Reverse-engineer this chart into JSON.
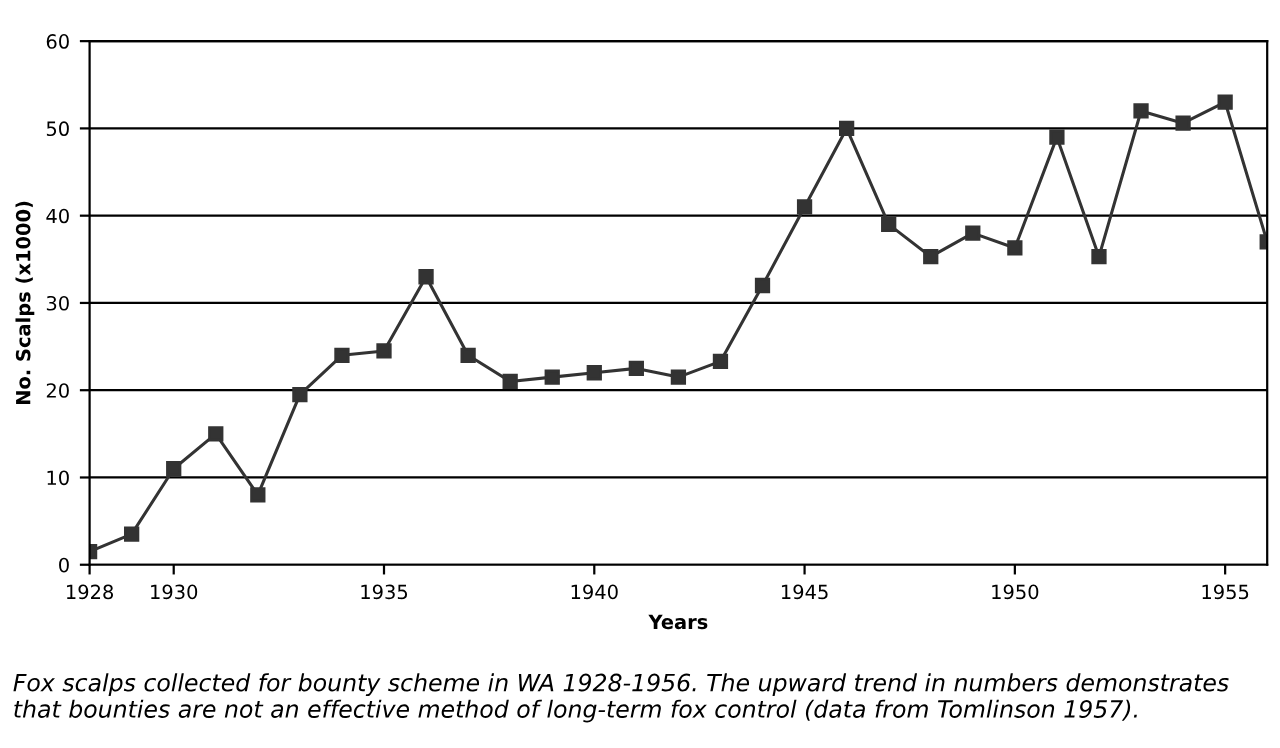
{
  "chart_data": {
    "type": "line",
    "xlabel": "Years",
    "ylabel": "No. Scalps (x1000)",
    "x": [
      1928,
      1929,
      1930,
      1931,
      1932,
      1933,
      1934,
      1935,
      1936,
      1937,
      1938,
      1939,
      1940,
      1941,
      1942,
      1943,
      1944,
      1945,
      1946,
      1947,
      1948,
      1949,
      1950,
      1951,
      1952,
      1953,
      1954,
      1955,
      1956
    ],
    "series": [
      {
        "color": "#333333",
        "values": [
          1.5,
          3.5,
          11,
          15,
          8,
          19.5,
          24,
          24.5,
          33,
          24,
          21,
          21.5,
          22,
          22.5,
          21.5,
          23.3,
          32,
          41,
          50,
          39,
          35.3,
          38,
          36.3,
          49,
          35.3,
          52,
          50.6,
          53,
          37
        ]
      }
    ],
    "xlim": [
      1928,
      1956
    ],
    "xticks": [
      1928,
      1930,
      1935,
      1940,
      1945,
      1950,
      1955
    ],
    "ylim": [
      0,
      60
    ],
    "yticks": [
      0,
      10,
      20,
      30,
      40,
      50,
      60
    ],
    "grid": "y",
    "marker": "square",
    "line_style": "solid",
    "annotations": [
      "Fox scalps collected for bounty scheme in WA 1928-1956. The upward trend in numbers demonstrates that bounties are not an effective method of long-term fox control (data from Tomlinson 1957)."
    ]
  }
}
